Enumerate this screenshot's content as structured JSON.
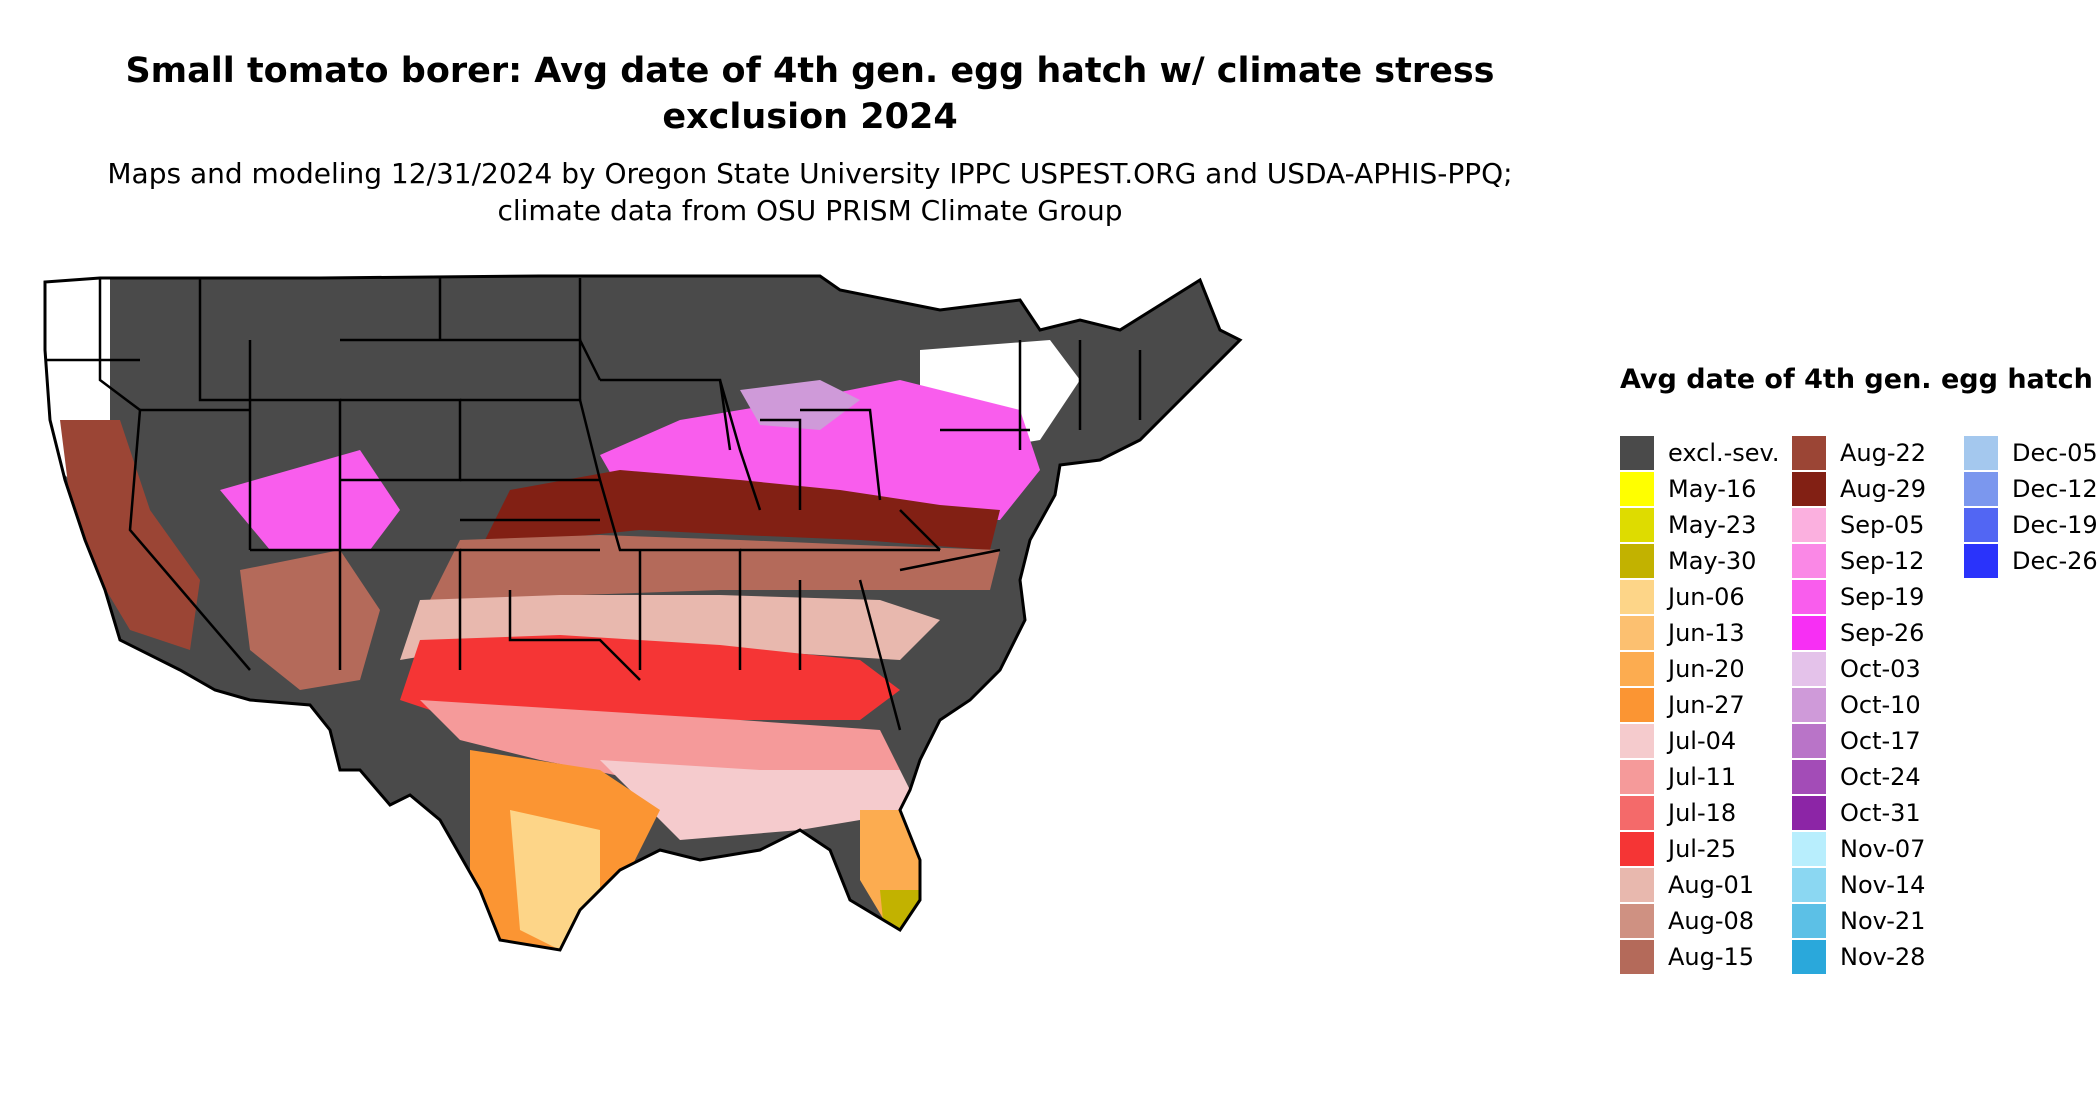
{
  "title": "Small tomato borer: Avg date of 4th gen. egg hatch w/ climate stress exclusion 2024",
  "subtitle": "Maps and modeling 12/31/2024 by Oregon State University IPPC USPEST.ORG and USDA-APHIS-PPQ; climate data from OSU PRISM Climate Group",
  "legend": {
    "title": "Avg date of 4th gen. egg hatch",
    "items": [
      {
        "label": "excl.-sev.",
        "color": "#4a4a4a"
      },
      {
        "label": "May-16",
        "color": "#ffff00"
      },
      {
        "label": "May-23",
        "color": "#dedc00"
      },
      {
        "label": "May-30",
        "color": "#c2b200"
      },
      {
        "label": "Jun-06",
        "color": "#fdd588"
      },
      {
        "label": "Jun-13",
        "color": "#fcc070"
      },
      {
        "label": "Jun-20",
        "color": "#fcac50"
      },
      {
        "label": "Jun-27",
        "color": "#fb9533"
      },
      {
        "label": "Jul-04",
        "color": "#f5cbcd"
      },
      {
        "label": "Jul-11",
        "color": "#f59a9a"
      },
      {
        "label": "Jul-18",
        "color": "#f46a6a"
      },
      {
        "label": "Jul-25",
        "color": "#f53535"
      },
      {
        "label": "Aug-01",
        "color": "#e8b8ae"
      },
      {
        "label": "Aug-08",
        "color": "#cf9182"
      },
      {
        "label": "Aug-15",
        "color": "#b46a5a"
      },
      {
        "label": "Aug-22",
        "color": "#9b4535"
      },
      {
        "label": "Aug-29",
        "color": "#822014"
      },
      {
        "label": "Sep-05",
        "color": "#fbb0df"
      },
      {
        "label": "Sep-12",
        "color": "#fa88e6"
      },
      {
        "label": "Sep-19",
        "color": "#f95ded"
      },
      {
        "label": "Sep-26",
        "color": "#f72ff4"
      },
      {
        "label": "Oct-03",
        "color": "#e4c2ea"
      },
      {
        "label": "Oct-10",
        "color": "#cf9ad9"
      },
      {
        "label": "Oct-17",
        "color": "#b974c8"
      },
      {
        "label": "Oct-24",
        "color": "#a34cb7"
      },
      {
        "label": "Oct-31",
        "color": "#8c25a6"
      },
      {
        "label": "Nov-07",
        "color": "#b8eefd"
      },
      {
        "label": "Nov-14",
        "color": "#8bd7f2"
      },
      {
        "label": "Nov-21",
        "color": "#5cc0e6"
      },
      {
        "label": "Nov-28",
        "color": "#2aa8db"
      },
      {
        "label": "Dec-05",
        "color": "#a4c8ee"
      },
      {
        "label": "Dec-12",
        "color": "#7b97ee"
      },
      {
        "label": "Dec-19",
        "color": "#5266f3"
      },
      {
        "label": "Dec-26",
        "color": "#2a33fb"
      }
    ]
  }
}
